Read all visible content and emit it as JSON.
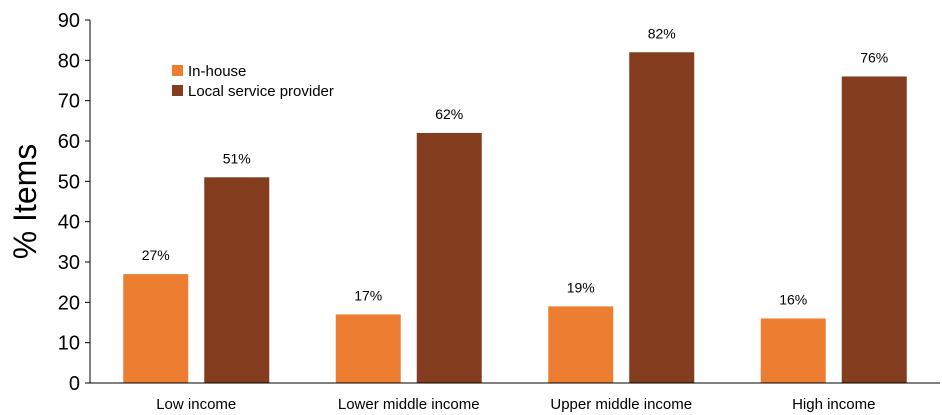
{
  "chart_data": {
    "type": "bar",
    "categories": [
      "Low income",
      "Lower middle income",
      "Upper middle income",
      "High income"
    ],
    "series": [
      {
        "name": "In-house",
        "values": [
          27,
          17,
          19,
          16
        ],
        "labels": [
          "27%",
          "17%",
          "19%",
          "16%"
        ],
        "color": "#ED7D31"
      },
      {
        "name": "Local service provider",
        "values": [
          51,
          62,
          82,
          76
        ],
        "labels": [
          "51%",
          "62%",
          "82%",
          "76%"
        ],
        "color": "#843C1E"
      }
    ],
    "title": "",
    "xlabel": "",
    "ylabel": "% Items",
    "ylim": [
      0,
      90
    ],
    "yticks": [
      0,
      10,
      20,
      30,
      40,
      50,
      60,
      70,
      80,
      90
    ],
    "grid": false,
    "legend": "top-left"
  }
}
